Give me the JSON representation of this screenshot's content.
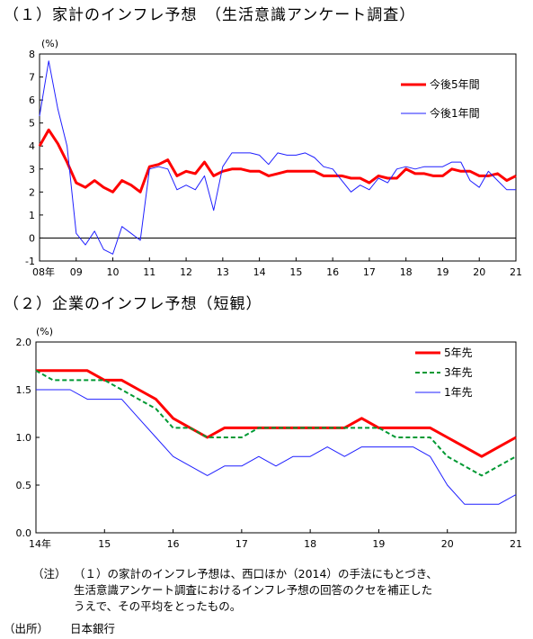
{
  "titles": {
    "chart1": "（１）家計のインフレ予想　（生活意識アンケート調査）",
    "chart2": "（２）企業のインフレ予想（短観）"
  },
  "notes": {
    "label": "（注）",
    "lines": [
      "（１）の家計のインフレ予想は、西口ほか（2014）の手法にもとづき、",
      "生活意識アンケート調査におけるインフレ予想の回答のクセを補正した",
      "うえで、その平均をとったもの。"
    ],
    "source_label": "（出所）",
    "source": "日本銀行"
  },
  "colors": {
    "red": "#ff0000",
    "blue": "#1f1fff",
    "green": "#009933",
    "axis": "#000000"
  },
  "chart_data": [
    {
      "type": "line",
      "unit_label": "(%)",
      "ylim": [
        -1,
        8
      ],
      "yticks": [
        "-1",
        "0",
        "1",
        "2",
        "3",
        "4",
        "5",
        "6",
        "7",
        "8"
      ],
      "xlim": [
        2008,
        2021
      ],
      "xtick_labels": [
        "08年",
        "09",
        "10",
        "11",
        "12",
        "13",
        "14",
        "15",
        "16",
        "17",
        "18",
        "19",
        "20",
        "21"
      ],
      "zero_line": true,
      "legend_position": "top-right",
      "series": [
        {
          "name": "今後5年間",
          "color": "red",
          "width": 3,
          "x": [
            2008.0,
            2008.25,
            2008.5,
            2008.75,
            2009.0,
            2009.25,
            2009.5,
            2009.75,
            2010.0,
            2010.25,
            2010.5,
            2010.75,
            2011.0,
            2011.25,
            2011.5,
            2011.75,
            2012.0,
            2012.25,
            2012.5,
            2012.75,
            2013.0,
            2013.25,
            2013.5,
            2013.75,
            2014.0,
            2014.25,
            2014.5,
            2014.75,
            2015.0,
            2015.25,
            2015.5,
            2015.75,
            2016.0,
            2016.25,
            2016.5,
            2016.75,
            2017.0,
            2017.25,
            2017.5,
            2017.75,
            2018.0,
            2018.25,
            2018.5,
            2018.75,
            2019.0,
            2019.25,
            2019.5,
            2019.75,
            2020.0,
            2020.25,
            2020.5,
            2020.75,
            2021.0
          ],
          "y": [
            4.0,
            4.7,
            4.1,
            3.3,
            2.4,
            2.2,
            2.5,
            2.2,
            2.0,
            2.5,
            2.3,
            2.0,
            3.1,
            3.2,
            3.4,
            2.7,
            2.9,
            2.8,
            3.3,
            2.7,
            2.9,
            3.0,
            3.0,
            2.9,
            2.9,
            2.7,
            2.8,
            2.9,
            2.9,
            2.9,
            2.9,
            2.7,
            2.7,
            2.7,
            2.6,
            2.6,
            2.4,
            2.7,
            2.6,
            2.6,
            3.0,
            2.8,
            2.8,
            2.7,
            2.7,
            3.0,
            2.9,
            2.9,
            2.7,
            2.7,
            2.8,
            2.5,
            2.7
          ]
        },
        {
          "name": "今後1年間",
          "color": "blue",
          "width": 1,
          "x": [
            2008.0,
            2008.25,
            2008.5,
            2008.75,
            2009.0,
            2009.25,
            2009.5,
            2009.75,
            2010.0,
            2010.25,
            2010.5,
            2010.75,
            2011.0,
            2011.25,
            2011.5,
            2011.75,
            2012.0,
            2012.25,
            2012.5,
            2012.75,
            2013.0,
            2013.25,
            2013.5,
            2013.75,
            2014.0,
            2014.25,
            2014.5,
            2014.75,
            2015.0,
            2015.25,
            2015.5,
            2015.75,
            2016.0,
            2016.25,
            2016.5,
            2016.75,
            2017.0,
            2017.25,
            2017.5,
            2017.75,
            2018.0,
            2018.25,
            2018.5,
            2018.75,
            2019.0,
            2019.25,
            2019.5,
            2019.75,
            2020.0,
            2020.25,
            2020.5,
            2020.75,
            2021.0
          ],
          "y": [
            5.3,
            7.7,
            5.6,
            4.0,
            0.2,
            -0.3,
            0.3,
            -0.5,
            -0.7,
            0.5,
            0.2,
            -0.1,
            3.0,
            3.1,
            3.0,
            2.1,
            2.3,
            2.1,
            2.7,
            1.2,
            3.1,
            3.7,
            3.7,
            3.7,
            3.6,
            3.2,
            3.7,
            3.6,
            3.6,
            3.7,
            3.5,
            3.1,
            3.0,
            2.5,
            2.0,
            2.3,
            2.1,
            2.6,
            2.4,
            3.0,
            3.1,
            3.0,
            3.1,
            3.1,
            3.1,
            3.3,
            3.3,
            2.5,
            2.2,
            2.9,
            2.5,
            2.1,
            2.1
          ]
        }
      ]
    },
    {
      "type": "line",
      "unit_label": "(%)",
      "ylim": [
        0.0,
        2.0
      ],
      "yticks": [
        "0.0",
        "0.5",
        "1.0",
        "1.5",
        "2.0"
      ],
      "xlim": [
        2014,
        2021
      ],
      "xtick_labels": [
        "14年",
        "15",
        "16",
        "17",
        "18",
        "19",
        "20",
        "21"
      ],
      "legend_position": "top-right",
      "series": [
        {
          "name": "5年先",
          "color": "red",
          "width": 3,
          "dash": false,
          "x": [
            2014.0,
            2014.25,
            2014.5,
            2014.75,
            2015.0,
            2015.25,
            2015.5,
            2015.75,
            2016.0,
            2016.25,
            2016.5,
            2016.75,
            2017.0,
            2017.25,
            2017.5,
            2017.75,
            2018.0,
            2018.25,
            2018.5,
            2018.75,
            2019.0,
            2019.25,
            2019.5,
            2019.75,
            2020.0,
            2020.25,
            2020.5,
            2020.75,
            2021.0
          ],
          "y": [
            1.7,
            1.7,
            1.7,
            1.7,
            1.6,
            1.6,
            1.5,
            1.4,
            1.2,
            1.1,
            1.0,
            1.1,
            1.1,
            1.1,
            1.1,
            1.1,
            1.1,
            1.1,
            1.1,
            1.2,
            1.1,
            1.1,
            1.1,
            1.1,
            1.0,
            0.9,
            0.8,
            0.9,
            1.0
          ]
        },
        {
          "name": "3年先",
          "color": "green",
          "width": 2,
          "dash": true,
          "x": [
            2014.0,
            2014.25,
            2014.5,
            2014.75,
            2015.0,
            2015.25,
            2015.5,
            2015.75,
            2016.0,
            2016.25,
            2016.5,
            2016.75,
            2017.0,
            2017.25,
            2017.5,
            2017.75,
            2018.0,
            2018.25,
            2018.5,
            2018.75,
            2019.0,
            2019.25,
            2019.5,
            2019.75,
            2020.0,
            2020.25,
            2020.5,
            2020.75,
            2021.0
          ],
          "y": [
            1.7,
            1.6,
            1.6,
            1.6,
            1.6,
            1.5,
            1.4,
            1.3,
            1.1,
            1.1,
            1.0,
            1.0,
            1.0,
            1.1,
            1.1,
            1.1,
            1.1,
            1.1,
            1.1,
            1.1,
            1.1,
            1.0,
            1.0,
            1.0,
            0.8,
            0.7,
            0.6,
            0.7,
            0.8
          ]
        },
        {
          "name": "1年先",
          "color": "blue",
          "width": 1,
          "dash": false,
          "x": [
            2014.0,
            2014.25,
            2014.5,
            2014.75,
            2015.0,
            2015.25,
            2015.5,
            2015.75,
            2016.0,
            2016.25,
            2016.5,
            2016.75,
            2017.0,
            2017.25,
            2017.5,
            2017.75,
            2018.0,
            2018.25,
            2018.5,
            2018.75,
            2019.0,
            2019.25,
            2019.5,
            2019.75,
            2020.0,
            2020.25,
            2020.5,
            2020.75,
            2021.0
          ],
          "y": [
            1.5,
            1.5,
            1.5,
            1.4,
            1.4,
            1.4,
            1.2,
            1.0,
            0.8,
            0.7,
            0.6,
            0.7,
            0.7,
            0.8,
            0.7,
            0.8,
            0.8,
            0.9,
            0.8,
            0.9,
            0.9,
            0.9,
            0.9,
            0.8,
            0.5,
            0.3,
            0.3,
            0.3,
            0.4
          ]
        }
      ]
    }
  ]
}
